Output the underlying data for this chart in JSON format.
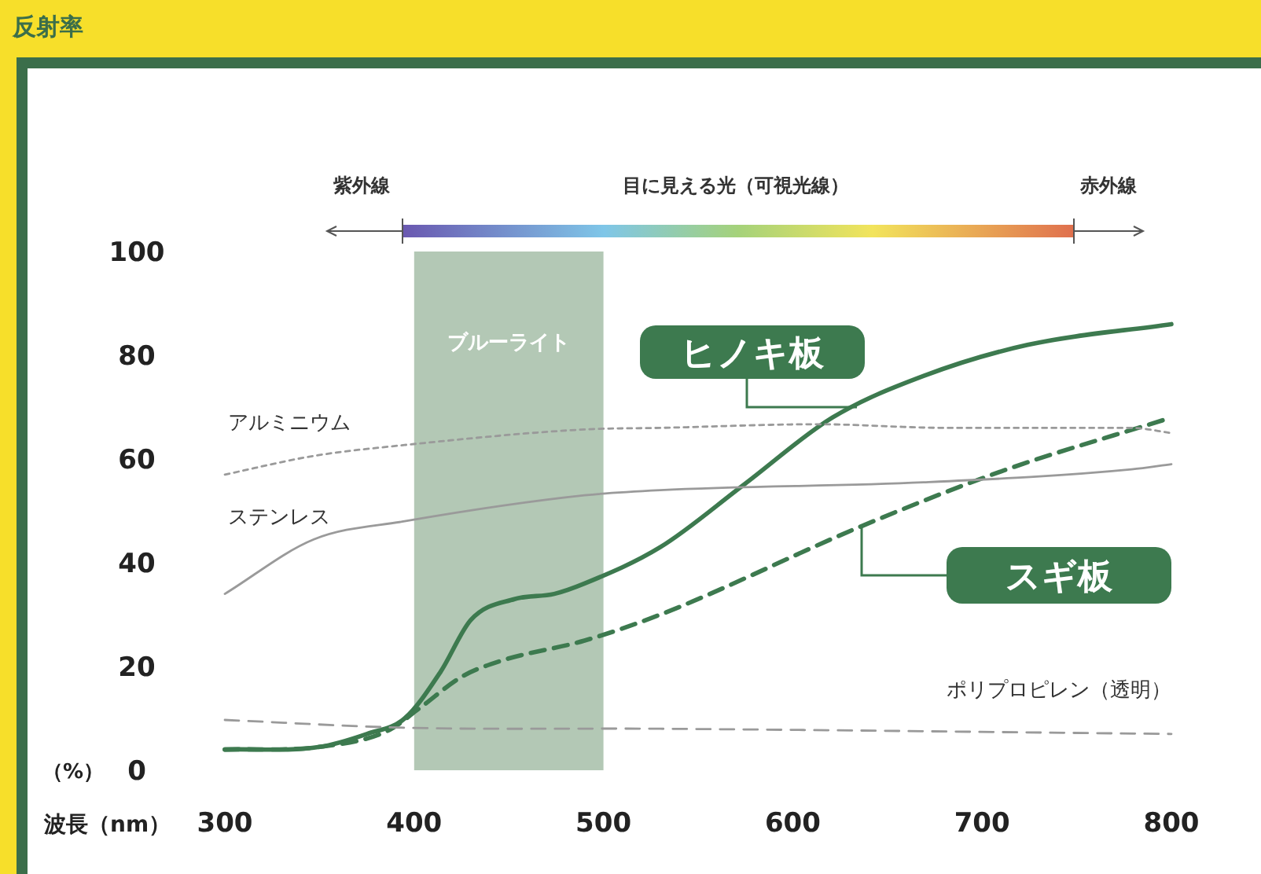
{
  "chart_data": {
    "type": "line",
    "title": "反射率",
    "xlabel": "波長（nm）",
    "ylabel": "（%）",
    "xlim": [
      300,
      800
    ],
    "xticks": [
      300,
      400,
      500,
      600,
      700,
      800
    ],
    "ylim": [
      0,
      100
    ],
    "yticks": [
      0,
      20,
      40,
      60,
      80,
      100
    ],
    "grid": false,
    "legend": false,
    "marker": "none",
    "bands": [
      {
        "axis": "x",
        "from": 400,
        "to": 500,
        "label": "ブルーライト",
        "color": "#b3c8b5"
      }
    ],
    "annotations": [
      "紫外線",
      "目に見える光（可視光線）",
      "赤外線"
    ],
    "series": [
      {
        "name": "ヒノキ板",
        "color": "#3d7a4f",
        "line_style": "solid",
        "x": [
          300,
          350,
          375,
          395,
          414,
          430,
          453,
          474,
          490,
          530,
          574,
          621,
          669,
          724,
          800
        ],
        "values": [
          4,
          4.5,
          7,
          10,
          19,
          29,
          33,
          34,
          36,
          43,
          55,
          68,
          76,
          82,
          86
        ]
      },
      {
        "name": "スギ板",
        "color": "#3d7a4f",
        "line_style": "dashed",
        "x": [
          300,
          350,
          386,
          403,
          425,
          445,
          490,
          530,
          636,
          710,
          800
        ],
        "values": [
          4,
          4.5,
          7.6,
          12,
          18,
          21,
          25,
          30,
          47,
          57.6,
          68
        ]
      },
      {
        "name": "アルミニウム",
        "color": "#9a9a9a",
        "line_style": "dotted",
        "x": [
          300,
          347,
          395,
          490,
          530,
          613,
          682,
          779,
          800
        ],
        "values": [
          57,
          60.6,
          62.7,
          65.7,
          66,
          66.7,
          66,
          66,
          65
        ]
      },
      {
        "name": "ステンレス",
        "color": "#9a9a9a",
        "line_style": "solid",
        "x": [
          300,
          347,
          395,
          490,
          530,
          669,
          779,
          800
        ],
        "values": [
          34,
          44.5,
          48,
          53,
          54,
          55.5,
          58,
          59
        ]
      },
      {
        "name": "ポリプロピレン（透明）",
        "color": "#9a9a9a",
        "line_style": "dashed",
        "x": [
          300,
          395,
          530,
          800
        ],
        "values": [
          9.7,
          8.2,
          8,
          7
        ]
      }
    ]
  }
}
